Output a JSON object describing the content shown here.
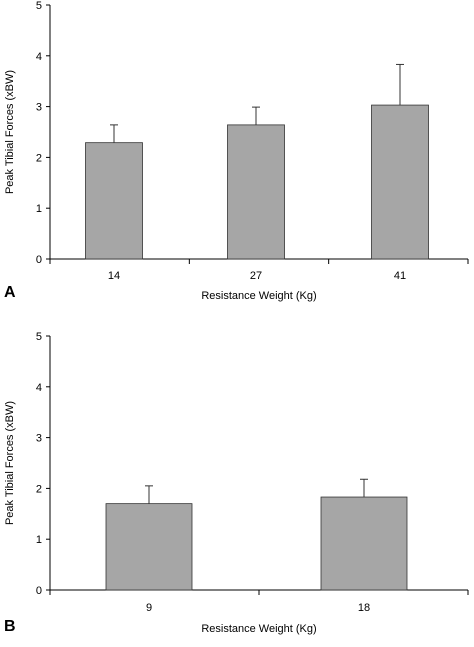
{
  "chart_data": [
    {
      "type": "bar",
      "panel_label": "A",
      "categories": [
        "14",
        "27",
        "41"
      ],
      "values": [
        2.29,
        2.64,
        3.03
      ],
      "errors": [
        0.35,
        0.35,
        0.8
      ],
      "xlabel": "Resistance Weight (Kg)",
      "ylabel": "Peak Tibial Forces (xBW)",
      "ylim": [
        0,
        5
      ],
      "yticks": [
        "0",
        "1",
        "2",
        "3",
        "4",
        "5"
      ],
      "grid": false,
      "bar_color": "#a6a6a6",
      "error_bar_style": "upper-only"
    },
    {
      "type": "bar",
      "panel_label": "B",
      "categories": [
        "9",
        "18"
      ],
      "values": [
        1.7,
        1.83
      ],
      "errors": [
        0.35,
        0.35
      ],
      "xlabel": "Resistance Weight (Kg)",
      "ylabel": "Peak Tibial Forces (xBW)",
      "ylim": [
        0,
        5
      ],
      "yticks": [
        "0",
        "1",
        "2",
        "3",
        "4",
        "5"
      ],
      "grid": false,
      "bar_color": "#a6a6a6",
      "error_bar_style": "upper-only"
    }
  ]
}
